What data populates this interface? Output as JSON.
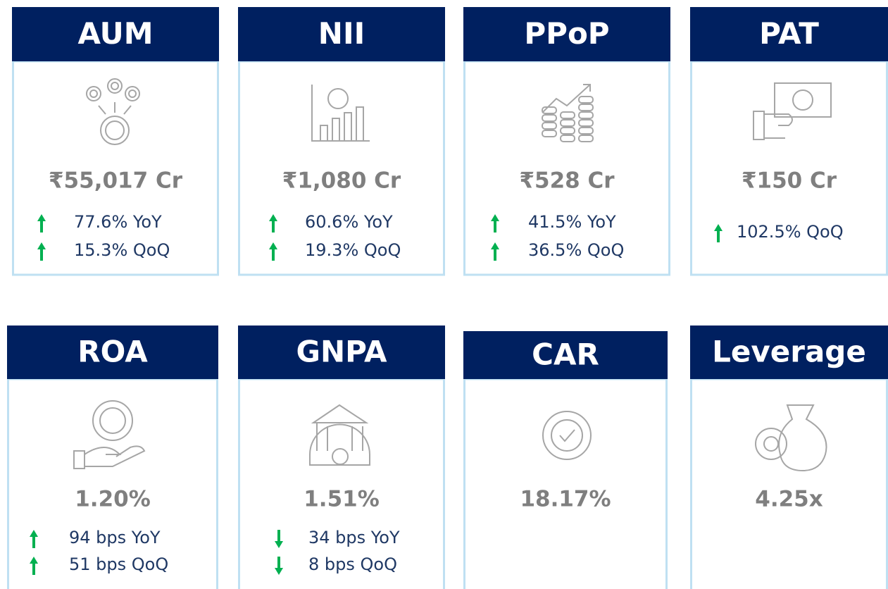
{
  "cards": [
    {
      "title": "AUM",
      "value": "₹55,017 Cr",
      "changes": [
        "77.6% YoY",
        "15.3% QoQ"
      ]
    },
    {
      "title": "NII",
      "value": "₹1,080 Cr",
      "changes": [
        "60.6% YoY",
        "19.3% QoQ"
      ]
    },
    {
      "title": "PPoP",
      "value": "₹528 Cr",
      "changes": [
        "41.5% YoY",
        "36.5% QoQ"
      ]
    },
    {
      "title": "PAT",
      "value": "₹150 Cr",
      "changes": [
        "102.5% QoQ"
      ]
    },
    {
      "title": "ROA",
      "value": "1.20%",
      "changes": [
        "94 bps YoY",
        "51 bps QoQ"
      ]
    },
    {
      "title": "GNPA",
      "value": "1.51%",
      "changes": [
        "34 bps YoY",
        "8 bps QoQ"
      ]
    },
    {
      "title": "CAR",
      "value": "18.17%",
      "changes": []
    },
    {
      "title": "Leverage",
      "value": "4.25x",
      "changes": []
    }
  ]
}
